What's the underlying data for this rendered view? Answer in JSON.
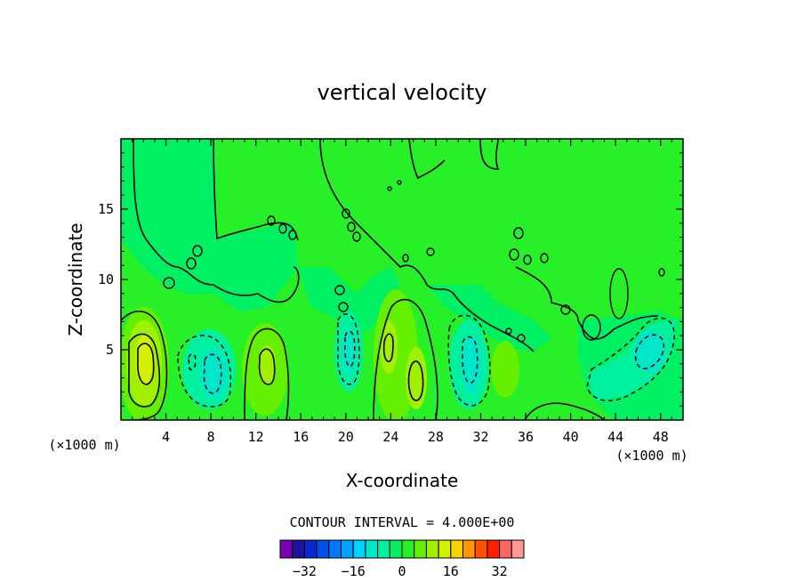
{
  "chart_data": {
    "type": "heatmap",
    "subtype": "filled-contour",
    "title": "vertical velocity",
    "xlabel": "X-coordinate",
    "ylabel": "Z-coordinate",
    "x_unit_left": "(×1000 m)",
    "x_unit_right": "(×1000 m)",
    "xlim": [
      0,
      50
    ],
    "ylim": [
      0,
      20
    ],
    "x_ticks": [
      4,
      8,
      12,
      16,
      20,
      24,
      28,
      32,
      36,
      40,
      44,
      48
    ],
    "y_ticks": [
      5,
      10,
      15
    ],
    "contour_interval_label": "CONTOUR INTERVAL = 4.000E+00",
    "colorbar": {
      "levels": [
        -36,
        -32,
        -28,
        -24,
        -20,
        -16,
        -12,
        -8,
        -4,
        0,
        4,
        8,
        12,
        16,
        20,
        24,
        28,
        32,
        36
      ],
      "colors": [
        "#7a00b4",
        "#1e14a0",
        "#0a28d2",
        "#0050f0",
        "#0078ff",
        "#00a0ff",
        "#00d2ff",
        "#00e6c8",
        "#00f0a0",
        "#00f064",
        "#28f028",
        "#64f000",
        "#a0f000",
        "#d2f000",
        "#f5d200",
        "#ff9600",
        "#ff5000",
        "#ff1e00",
        "#ff6464",
        "#ff9696"
      ],
      "tick_labels": [
        "-32",
        "-16",
        "0",
        "16",
        "32"
      ],
      "tick_values": [
        -32,
        -16,
        0,
        16,
        32
      ]
    },
    "field_features": [
      {
        "kind": "updraft",
        "x": 2.2,
        "z": 4.5,
        "max": 14
      },
      {
        "kind": "downdraft",
        "x": 7.5,
        "z": 3.5,
        "min": -10
      },
      {
        "kind": "updraft",
        "x": 13.0,
        "z": 4.0,
        "max": 9
      },
      {
        "kind": "downdraft",
        "x": 20.0,
        "z": 5.0,
        "min": -8
      },
      {
        "kind": "updraft",
        "x": 24.0,
        "z": 5.0,
        "max": 10
      },
      {
        "kind": "updraft",
        "x": 26.0,
        "z": 2.5,
        "max": 9
      },
      {
        "kind": "downdraft",
        "x": 31.0,
        "z": 3.5,
        "min": -10
      },
      {
        "kind": "updraft",
        "x": 34.0,
        "z": 3.5,
        "max": 5
      },
      {
        "kind": "downdraft",
        "x": 46.5,
        "z": 5.0,
        "min": -10
      }
    ],
    "grid": false,
    "legend": "bottom-center"
  }
}
